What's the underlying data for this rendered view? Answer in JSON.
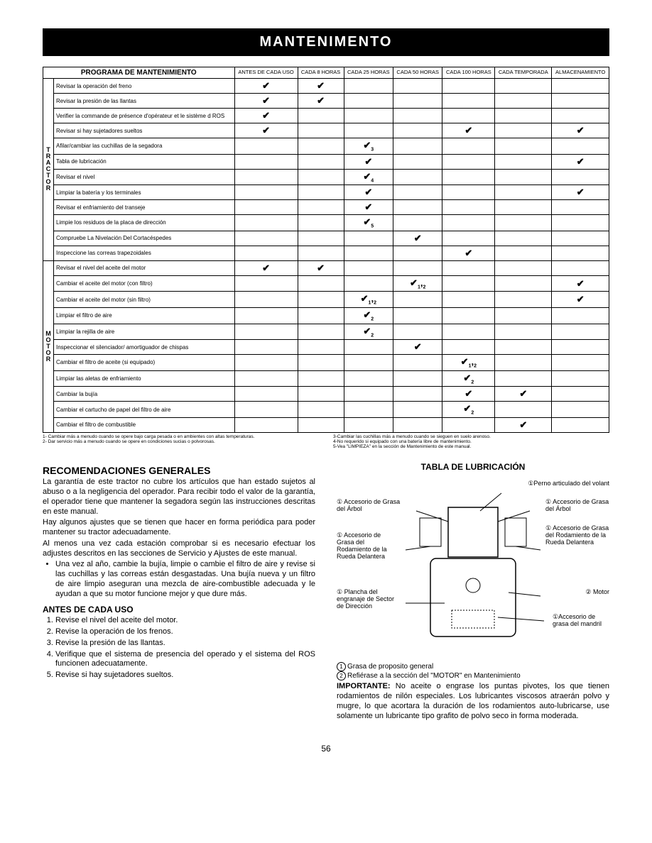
{
  "banner": "MANTENIMENTO",
  "table": {
    "program_header": "PROGRAMA DE MANTENIMIENTO",
    "columns": [
      "ANTES DE CADA USO",
      "CADA 8 HORAS",
      "CADA 25 HORAS",
      "CADA 50 HORAS",
      "CADA 100 HORAS",
      "CADA TEMPORADA",
      "ALMACENAMIENTO"
    ],
    "group1_label": "TRACTOR",
    "group2_label": "MOTOR",
    "rows_tractor": [
      {
        "label": "Revisar la operación del freno",
        "cells": [
          "✔",
          "✔",
          "",
          "",
          "",
          "",
          ""
        ]
      },
      {
        "label": "Revisar la presión de las llantas",
        "cells": [
          "✔",
          "✔",
          "",
          "",
          "",
          "",
          ""
        ]
      },
      {
        "label": "Verifier la commande de présence d'opérateur et le sistème d ROS",
        "cells": [
          "✔",
          "",
          "",
          "",
          "",
          "",
          ""
        ]
      },
      {
        "label": "Revisar si hay sujetadores sueltos",
        "cells": [
          "✔",
          "",
          "",
          "",
          "✔",
          "",
          "✔"
        ]
      },
      {
        "label": "Afilar/cambiar las cuchillas de la segadora",
        "cells": [
          "",
          "",
          "✔₃",
          "",
          "",
          "",
          ""
        ]
      },
      {
        "label": "Tabla de lubricación",
        "cells": [
          "",
          "",
          "✔",
          "",
          "",
          "",
          "✔"
        ]
      },
      {
        "label": "Revisar el nivel",
        "cells": [
          "",
          "",
          "✔₄",
          "",
          "",
          "",
          ""
        ]
      },
      {
        "label": "Limpiar la batería y los terminales",
        "cells": [
          "",
          "",
          "✔",
          "",
          "",
          "",
          "✔"
        ]
      },
      {
        "label": "Revisar el enfriamiento del transeje",
        "cells": [
          "",
          "",
          "✔",
          "",
          "",
          "",
          ""
        ]
      },
      {
        "label": "Limpie los residuos de la placa de dirección",
        "cells": [
          "",
          "",
          "✔₅",
          "",
          "",
          "",
          ""
        ]
      },
      {
        "label": "Compruebe La Nivelación Del Cortacéspedes",
        "cells": [
          "",
          "",
          "",
          "✔",
          "",
          "",
          ""
        ]
      },
      {
        "label": "Inspeccione las correas trapezoidales",
        "cells": [
          "",
          "",
          "",
          "",
          "✔",
          "",
          ""
        ]
      }
    ],
    "rows_motor": [
      {
        "label": "Revisar el nivel del aceite del motor",
        "cells": [
          "✔",
          "✔",
          "",
          "",
          "",
          "",
          ""
        ]
      },
      {
        "label": "Cambiar el aceite del motor (con filtro)",
        "cells": [
          "",
          "",
          "",
          "✔₁,₂",
          "",
          "",
          "✔"
        ]
      },
      {
        "label": "Cambiar el aceite del motor (sin filtro)",
        "cells": [
          "",
          "",
          "✔₁,₂",
          "",
          "",
          "",
          "✔"
        ]
      },
      {
        "label": "Limpiar el filtro de aire",
        "cells": [
          "",
          "",
          "✔₂",
          "",
          "",
          "",
          ""
        ]
      },
      {
        "label": "Limpiar la rejilla de aire",
        "cells": [
          "",
          "",
          "✔₂",
          "",
          "",
          "",
          ""
        ]
      },
      {
        "label": "Inspeccionar el silenciador/ amortiguador de chispas",
        "cells": [
          "",
          "",
          "",
          "✔",
          "",
          "",
          ""
        ]
      },
      {
        "label": "Cambiar el filtro de aceite (si equipado)",
        "cells": [
          "",
          "",
          "",
          "",
          "✔₁,₂",
          "",
          ""
        ]
      },
      {
        "label": "Limpiar las aletas de enfriamiento",
        "cells": [
          "",
          "",
          "",
          "",
          "✔₂",
          "",
          ""
        ]
      },
      {
        "label": "Cambiar la bujía",
        "cells": [
          "",
          "",
          "",
          "",
          "✔",
          "✔",
          ""
        ]
      },
      {
        "label": "Cambiar el cartucho de papel del filtro de aire",
        "cells": [
          "",
          "",
          "",
          "",
          "✔₂",
          "",
          ""
        ]
      },
      {
        "label": "Cambiar el filtro de combustible",
        "cells": [
          "",
          "",
          "",
          "",
          "",
          "✔",
          ""
        ]
      }
    ]
  },
  "footnotes": {
    "left": [
      "1- Cambiar más a menudo cuando se opere bajo carga pesada o en ambientes con altas temperaturas.",
      "2- Dar servicio más a menudo cuando se opere en condiciones sucias o polvorosas."
    ],
    "right": [
      "3-Cambiar las cuchillas más a menudo cuando se sieguen en suelo arenoso.",
      "4-No requerido si equipado con una batería libre de mantenimiento.",
      "5-Vea \"LIMPIEZA\" en la sección de Mantenimiento de este manual."
    ]
  },
  "left_col": {
    "h1": "RECOMENDACIONES GENERALES",
    "p1": "La garantía de este tractor no cubre los artículos que han estado sujetos al abuso o a la negligencia del operador. Para recibir todo el valor de la garantía, el operador tiene que mantener la segadora según las instrucciones descritas en este manual.",
    "p2": "Hay algunos ajustes que se tienen que hacer en forma periódica para poder mantener su tractor adecuadamente.",
    "p3": "Al menos una vez cada estación comprobar si es necesario efectuar los adjustes descritos en las secciones de Servicio y Ajustes de este manual.",
    "bullet": "Una vez al año, cambie la bujía, limpie o cambie el filtro de aire y revise si las cuchillas y las correas están desgastadas. Una bujía nueva y un filtro de aire limpio aseguran una mezcla de aire-combustible adecuada y le ayudan a que su motor funcione mejor y que dure más.",
    "h2": "ANTES DE CADA USO",
    "ol": [
      "Revise el nivel del aceite del motor.",
      "Revise la operación de los frenos.",
      "Revise la presión de las llantas.",
      "Verifique que el sistema de presencia del operado y el sistema del ROS funcionen adecuatamente.",
      "Revise si hay sujetadores sueltos."
    ]
  },
  "right_col": {
    "title": "TABLA DE LUBRICACIÓN",
    "labels": {
      "perno": "①Perno articulado del volant",
      "acc_grasa_arbol_l": "① Accesorio de Grasa del Árbol",
      "acc_grasa_arbol_r": "① Accesorio de Grasa del Árbol",
      "acc_rodamiento_l": "① Accesorio de Grasa del Rodamiento de la Rueda Delantera",
      "acc_rodamiento_r": "① Accesorio de Grasa del Rodamiento de la Rueda Delantera",
      "plancha": "① Plancha del engranaje de Sector de Dirección",
      "motor": "② Motor",
      "mandril": "①Accesorio de grasa del mandril"
    },
    "legend1": "Grasa de proposito general",
    "legend2": "Refiérase a la sección del \"MOTOR\" en Mantenimiento",
    "importante_label": "IMPORTANTE:",
    "importante": "No aceite o engrase los puntas pivotes, los que tienen rodamientos de nilón especiales. Los lubricantes viscosos atraerán polvo y mugre, lo que acortara la duración de los rodamientos auto-lubricarse, use solamente un lubricante tipo grafito de polvo seco in forma moderada."
  },
  "page_number": "56"
}
